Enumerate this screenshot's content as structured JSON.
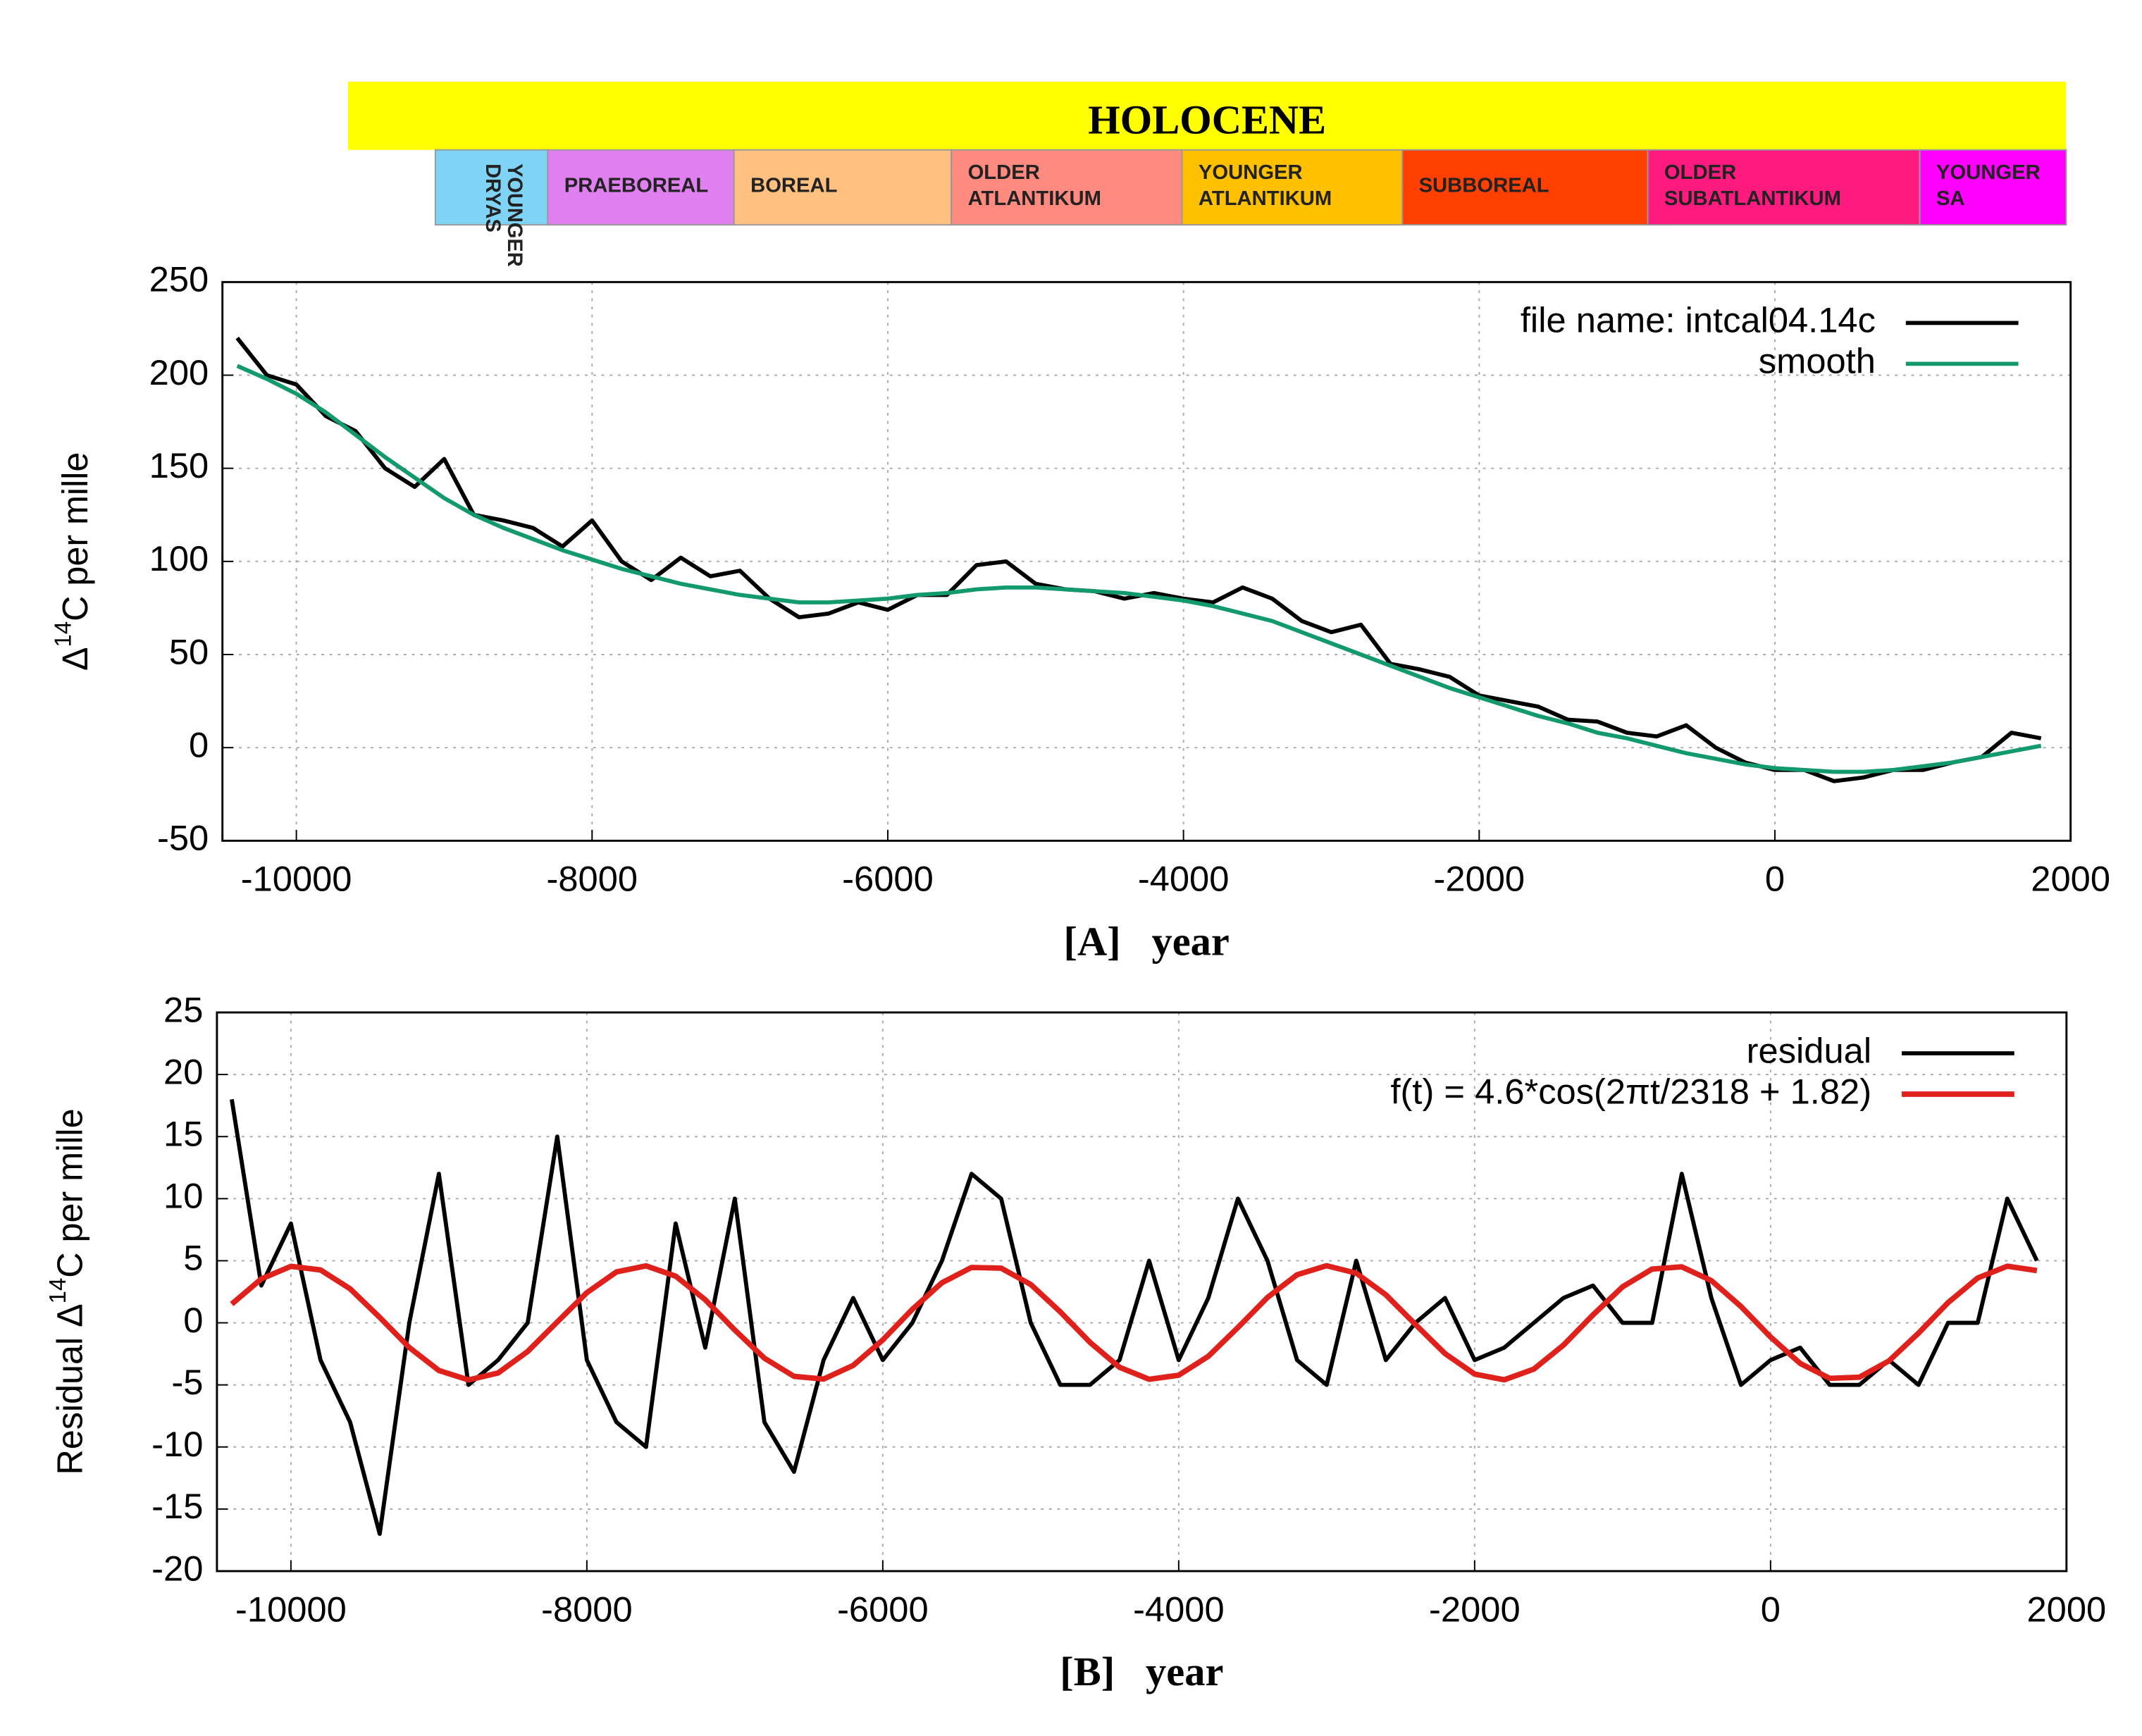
{
  "timeline": {
    "title": "HOLOCENE",
    "start": -9650,
    "end": 1970,
    "color": "#ffff00",
    "periods": [
      {
        "lines": [
          "YOUNGER",
          "DRYAS"
        ],
        "start": -9060,
        "end": -8300,
        "color": "#7fd4f5",
        "vertical": true
      },
      {
        "lines": [
          "PRAEBOREAL"
        ],
        "start": -8300,
        "end": -7040,
        "color": "#e080f0"
      },
      {
        "lines": [
          "BOREAL"
        ],
        "start": -7040,
        "end": -5570,
        "color": "#ffc080"
      },
      {
        "lines": [
          "OLDER",
          "ATLANTIKUM"
        ],
        "start": -5570,
        "end": -4010,
        "color": "#ff8a80"
      },
      {
        "lines": [
          "YOUNGER",
          "ATLANTIKUM"
        ],
        "start": -4010,
        "end": -2520,
        "color": "#ffc000"
      },
      {
        "lines": [
          "SUBBOREAL"
        ],
        "start": -2520,
        "end": -860,
        "color": "#ff4000"
      },
      {
        "lines": [
          "OLDER",
          "SUBATLANTIKUM"
        ],
        "start": -860,
        "end": 980,
        "color": "#ff1a80"
      },
      {
        "lines": [
          "YOUNGER",
          "SA"
        ],
        "start": 980,
        "end": 1970,
        "color": "#ff00ff"
      }
    ]
  },
  "chart_data": [
    {
      "type": "line",
      "xlabel": "[A]   year",
      "ylabel_parts": [
        "Δ",
        "14",
        "C per mille"
      ],
      "xlim": [
        -10500,
        2000
      ],
      "xticks": [
        -10000,
        -8000,
        -6000,
        -4000,
        -2000,
        0,
        2000
      ],
      "ylim": [
        -50,
        250
      ],
      "yticks": [
        -50,
        0,
        50,
        100,
        150,
        200,
        250
      ],
      "grid": true,
      "legend": "upper right",
      "x": [
        -10400,
        -10200,
        -10000,
        -9800,
        -9600,
        -9400,
        -9200,
        -9000,
        -8800,
        -8600,
        -8400,
        -8200,
        -8000,
        -7800,
        -7600,
        -7400,
        -7200,
        -7000,
        -6800,
        -6600,
        -6400,
        -6200,
        -6000,
        -5800,
        -5600,
        -5400,
        -5200,
        -5000,
        -4800,
        -4600,
        -4400,
        -4200,
        -4000,
        -3800,
        -3600,
        -3400,
        -3200,
        -3000,
        -2800,
        -2600,
        -2400,
        -2200,
        -2000,
        -1800,
        -1600,
        -1400,
        -1200,
        -1000,
        -800,
        -600,
        -400,
        -200,
        0,
        200,
        400,
        600,
        800,
        1000,
        1200,
        1400,
        1600,
        1800
      ],
      "series": [
        {
          "name": "file name: intcal04.14c",
          "color": "#000000",
          "width": 3,
          "values": [
            220,
            200,
            195,
            178,
            170,
            150,
            140,
            155,
            125,
            122,
            118,
            108,
            122,
            100,
            90,
            102,
            92,
            95,
            80,
            70,
            72,
            78,
            74,
            82,
            82,
            98,
            100,
            88,
            85,
            84,
            80,
            83,
            80,
            78,
            86,
            80,
            68,
            62,
            66,
            45,
            42,
            38,
            28,
            25,
            22,
            15,
            14,
            8,
            6,
            12,
            0,
            -8,
            -12,
            -12,
            -18,
            -16,
            -12,
            -12,
            -8,
            -5,
            8,
            5
          ]
        },
        {
          "name": "smooth",
          "color": "#12996e",
          "width": 3,
          "values": [
            205,
            198,
            190,
            180,
            168,
            156,
            145,
            134,
            125,
            118,
            112,
            106,
            101,
            96,
            92,
            88,
            85,
            82,
            80,
            78,
            78,
            79,
            80,
            82,
            83,
            85,
            86,
            86,
            85,
            84,
            83,
            81,
            79,
            76,
            72,
            68,
            62,
            56,
            50,
            44,
            38,
            32,
            27,
            22,
            17,
            13,
            8,
            5,
            1,
            -3,
            -6,
            -9,
            -11,
            -12,
            -13,
            -13,
            -12,
            -10,
            -8,
            -5,
            -2,
            1
          ]
        }
      ]
    },
    {
      "type": "line",
      "xlabel": "[B]   year",
      "ylabel_parts": [
        "Residual Δ",
        "14",
        "C per mille"
      ],
      "xlim": [
        -10500,
        2000
      ],
      "xticks": [
        -10000,
        -8000,
        -6000,
        -4000,
        -2000,
        0,
        2000
      ],
      "ylim": [
        -20,
        25
      ],
      "yticks": [
        -20,
        -15,
        -10,
        -5,
        0,
        5,
        10,
        15,
        20,
        25
      ],
      "grid": true,
      "legend": "upper right",
      "x": [
        -10400,
        -10200,
        -10000,
        -9800,
        -9600,
        -9400,
        -9200,
        -9000,
        -8800,
        -8600,
        -8400,
        -8200,
        -8000,
        -7800,
        -7600,
        -7400,
        -7200,
        -7000,
        -6800,
        -6600,
        -6400,
        -6200,
        -6000,
        -5800,
        -5600,
        -5400,
        -5200,
        -5000,
        -4800,
        -4600,
        -4400,
        -4200,
        -4000,
        -3800,
        -3600,
        -3400,
        -3200,
        -3000,
        -2800,
        -2600,
        -2400,
        -2200,
        -2000,
        -1800,
        -1600,
        -1400,
        -1200,
        -1000,
        -800,
        -600,
        -400,
        -200,
        0,
        200,
        400,
        600,
        800,
        1000,
        1200,
        1400,
        1600,
        1800
      ],
      "series": [
        {
          "name": "residual",
          "color": "#000000",
          "width": 3,
          "values": [
            18,
            3,
            8,
            -3,
            -8,
            -17,
            0,
            12,
            -5,
            -3,
            0,
            15,
            -3,
            -8,
            -10,
            8,
            -2,
            10,
            -8,
            -12,
            -3,
            2,
            -3,
            0,
            5,
            12,
            10,
            0,
            -5,
            -5,
            -3,
            5,
            -3,
            2,
            10,
            5,
            -3,
            -5,
            5,
            -3,
            0,
            2,
            -3,
            -2,
            0,
            2,
            3,
            0,
            0,
            12,
            2,
            -5,
            -3,
            -2,
            -5,
            -5,
            -3,
            -5,
            0,
            0,
            10,
            5
          ]
        },
        {
          "name": "f(t) = 4.6*cos(2πt/2318 + 1.82)",
          "color": "#e0201b",
          "width": 4,
          "values": [
            1.51,
            3.54,
            4.55,
            4.26,
            2.74,
            0.44,
            -1.99,
            -3.84,
            -4.6,
            -4.04,
            -2.31,
            0.07,
            2.43,
            4.1,
            4.59,
            3.76,
            1.86,
            -0.58,
            -2.85,
            -4.31,
            -4.53,
            -3.43,
            -1.38,
            1.09,
            3.23,
            4.46,
            4.4,
            3.09,
            0.88,
            -1.57,
            -3.58,
            -4.55,
            -4.22,
            -2.7,
            -0.38,
            2.04,
            3.87,
            4.6,
            4.0,
            2.26,
            -0.13,
            -2.48,
            -4.13,
            -4.59,
            -3.73,
            -1.8,
            0.64,
            2.9,
            4.33,
            4.51,
            3.4,
            1.32,
            -1.14,
            -3.27,
            -4.47,
            -4.38,
            -3.07,
            -0.83,
            1.63,
            3.61,
            4.56,
            4.21
          ]
        }
      ]
    }
  ]
}
